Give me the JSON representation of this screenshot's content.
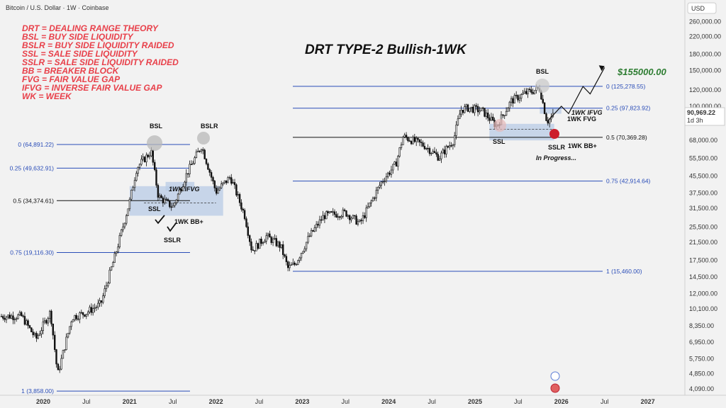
{
  "header": {
    "symbol": "Bitcoin / U.S. Dollar · 1W · Coinbase",
    "currency": "USD"
  },
  "title": "DRT  TYPE-2 Bullish-1WK",
  "target_label": "$155000.00",
  "price_tag": {
    "value": "90,969.22",
    "countdown": "1d 3h"
  },
  "legend": [
    "DRT = DEALING RANGE THEORY",
    "BSL = BUY SIDE LIQUIDITY",
    "BSLR = BUY SIDE LIQUIDITY RAIDED",
    "SSL = SALE SIDE LIQUIDITY",
    "SSLR = SALE SIDE LIQUIDITY RAIDED",
    "BB = BREAKER BLOCK",
    "FVG = FAIR VALUE GAP",
    "IFVG = INVERSE FAIR VALUE GAP",
    "WK = WEEK"
  ],
  "x_ticks": [
    "2020",
    "Jul",
    "2021",
    "Jul",
    "2022",
    "Jul",
    "2023",
    "Jul",
    "2024",
    "Jul",
    "2025",
    "Jul",
    "2026",
    "Jul",
    "2027"
  ],
  "y_ticks": [
    "260,000.00",
    "220,000.00",
    "180,000.00",
    "150,000.00",
    "120,000.00",
    "100,000.00",
    "68,000.00",
    "55,500.00",
    "45,500.00",
    "37,500.00",
    "31,500.00",
    "25,500.00",
    "21,500.00",
    "17,500.00",
    "14,500.00",
    "12,000.00",
    "10,100.00",
    "8,350.00",
    "6,950.00",
    "5,750.00",
    "4,850.00",
    "4,090.00"
  ],
  "left_fib": [
    {
      "label": "0 (64,891.22)",
      "value": 64891.22
    },
    {
      "label": "0.25 (49,632.91)",
      "value": 49632.91
    },
    {
      "label": "0.5 (34,374.61)",
      "value": 34374.61
    },
    {
      "label": "0.75 (19,116.30)",
      "value": 19116.3
    },
    {
      "label": "1 (3,858.00)",
      "value": 3858.0
    }
  ],
  "right_fib": [
    {
      "label": "0 (125,278.55)",
      "value": 125278.55
    },
    {
      "label": "0.25 (97,823.92)",
      "value": 97823.92
    },
    {
      "label": "0.5 (70,369.28)",
      "value": 70369.28
    },
    {
      "label": "0.75 (42,914.64)",
      "value": 42914.64
    },
    {
      "label": "1 (15,460.00)",
      "value": 15460.0
    }
  ],
  "annotations": {
    "bsl_left": "BSL",
    "bslr": "BSLR",
    "ifvg_left": "1WK IFVG",
    "ssl_left": "SSL",
    "bb_left": "1WK BB+",
    "sslr_left": "SSLR",
    "bsl_right": "BSL",
    "ssl_right": "SSL",
    "ifvg_right": "1WK IFVG",
    "fvg_right": "1WK FVG",
    "sslr_right": "SSLR",
    "bb_right": "1WK BB+",
    "progress": "In Progress..."
  },
  "colors": {
    "fib_blue": "#2a4db8",
    "fib_black": "#111111",
    "zone": "#b8cbe6",
    "legend_red": "#e8404a",
    "target_green": "#2e7d32",
    "candle": "#111111"
  },
  "chart_data": {
    "type": "candlestick",
    "series_name": "Bitcoin / U.S. Dollar",
    "timeframe": "1W",
    "yscale": "log",
    "x_range": [
      "2019-10",
      "2027-03"
    ],
    "y_range": [
      3900,
      300000
    ],
    "price_path": [
      [
        "2019-10",
        9300
      ],
      [
        "2019-12",
        7200
      ],
      [
        "2020-02",
        9800
      ],
      [
        "2020-03",
        4800
      ],
      [
        "2020-05",
        9200
      ],
      [
        "2020-07",
        9700
      ],
      [
        "2020-09",
        10700
      ],
      [
        "2020-11",
        18500
      ],
      [
        "2021-01",
        34000
      ],
      [
        "2021-02",
        50000
      ],
      [
        "2021-04",
        60000
      ],
      [
        "2021-05",
        36000
      ],
      [
        "2021-07",
        32000
      ],
      [
        "2021-09",
        47000
      ],
      [
        "2021-11",
        64000
      ],
      [
        "2022-01",
        38000
      ],
      [
        "2022-03",
        45000
      ],
      [
        "2022-05",
        29000
      ],
      [
        "2022-06",
        19500
      ],
      [
        "2022-08",
        23000
      ],
      [
        "2022-10",
        20500
      ],
      [
        "2022-11",
        16000
      ],
      [
        "2022-12",
        16800
      ],
      [
        "2023-02",
        23000
      ],
      [
        "2023-04",
        29000
      ],
      [
        "2023-07",
        30000
      ],
      [
        "2023-09",
        26500
      ],
      [
        "2023-12",
        42500
      ],
      [
        "2024-02",
        52000
      ],
      [
        "2024-03",
        71000
      ],
      [
        "2024-06",
        64000
      ],
      [
        "2024-08",
        56000
      ],
      [
        "2024-10",
        68000
      ],
      [
        "2024-11",
        96000
      ],
      [
        "2024-12",
        98000
      ],
      [
        "2025-02",
        95000
      ],
      [
        "2025-04",
        80000
      ],
      [
        "2025-06",
        106000
      ],
      [
        "2025-08",
        116000
      ],
      [
        "2025-10",
        122000
      ],
      [
        "2025-11",
        84000
      ],
      [
        "2025-12",
        90969.22
      ]
    ],
    "projection": [
      [
        "2025-11",
        84000
      ],
      [
        "2026-01",
        100000
      ],
      [
        "2026-02",
        92000
      ],
      [
        "2026-04",
        125000
      ],
      [
        "2026-05",
        115000
      ],
      [
        "2026-07",
        155000
      ]
    ],
    "target": 155000,
    "last_price": 90969.22
  }
}
